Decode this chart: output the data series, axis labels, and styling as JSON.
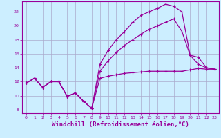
{
  "background_color": "#cceeff",
  "grid_color": "#aaaacc",
  "line_color": "#990099",
  "xlim": [
    -0.5,
    23.5
  ],
  "ylim": [
    7.5,
    23.5
  ],
  "xlabel": "Windchill (Refroidissement éolien,°C)",
  "xlabel_fontsize": 6.5,
  "xticks": [
    0,
    1,
    2,
    3,
    4,
    5,
    6,
    7,
    8,
    9,
    10,
    11,
    12,
    13,
    14,
    15,
    16,
    17,
    18,
    19,
    20,
    21,
    22,
    23
  ],
  "yticks": [
    8,
    10,
    12,
    14,
    16,
    18,
    20,
    22
  ],
  "curve1_x": [
    0,
    1,
    2,
    3,
    4,
    5,
    6,
    7,
    8,
    9,
    10,
    11,
    12,
    13,
    14,
    15,
    16,
    17,
    18,
    19,
    20,
    21,
    22,
    23
  ],
  "curve1_y": [
    11.8,
    12.5,
    11.2,
    12.0,
    12.0,
    9.9,
    10.4,
    9.2,
    8.2,
    12.5,
    12.8,
    13.0,
    13.2,
    13.3,
    13.4,
    13.5,
    13.5,
    13.5,
    13.5,
    13.5,
    13.7,
    13.9,
    13.8,
    13.8
  ],
  "curve2_x": [
    0,
    1,
    2,
    3,
    4,
    5,
    6,
    7,
    8,
    9,
    10,
    11,
    12,
    13,
    14,
    15,
    16,
    17,
    18,
    19,
    20,
    21,
    22,
    23
  ],
  "curve2_y": [
    11.8,
    12.5,
    11.2,
    12.0,
    12.0,
    9.9,
    10.4,
    9.2,
    8.2,
    14.5,
    16.5,
    18.0,
    19.2,
    20.5,
    21.5,
    22.0,
    22.5,
    23.1,
    22.8,
    22.0,
    15.8,
    15.5,
    14.0,
    13.8
  ],
  "curve3_x": [
    0,
    1,
    2,
    3,
    4,
    5,
    6,
    7,
    8,
    9,
    10,
    11,
    12,
    13,
    14,
    15,
    16,
    17,
    18,
    19,
    20,
    21,
    22,
    23
  ],
  "curve3_y": [
    11.8,
    12.5,
    11.2,
    12.0,
    12.0,
    9.9,
    10.4,
    9.2,
    8.2,
    13.5,
    15.0,
    16.2,
    17.2,
    18.0,
    18.8,
    19.5,
    20.0,
    20.5,
    21.0,
    19.2,
    15.8,
    14.5,
    14.0,
    13.8
  ]
}
